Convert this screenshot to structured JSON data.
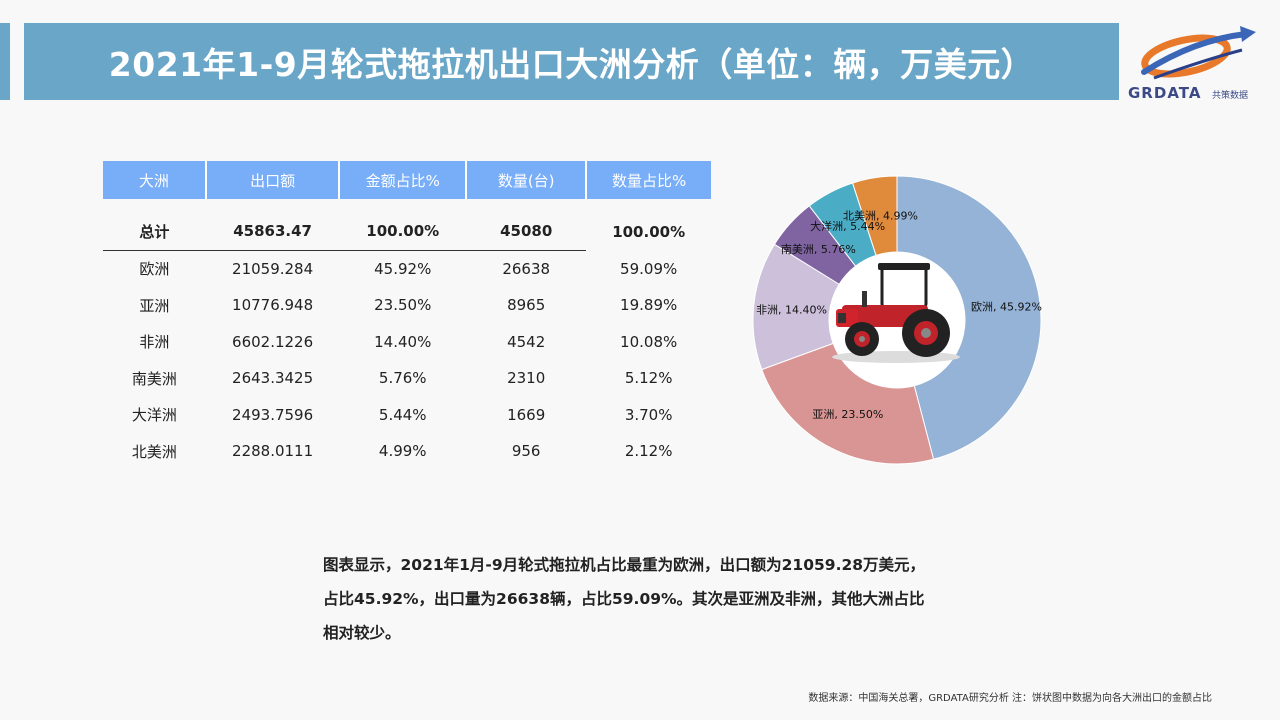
{
  "title": "2021年1-9月轮式拖拉机出口大洲分析（单位：辆，万美元）",
  "logo": {
    "brand": "GRDATA",
    "sub": "共策数据"
  },
  "table": {
    "headers": [
      "大洲",
      "出口额",
      "金额占比%",
      "数量(台)",
      "数量占比%"
    ],
    "total": [
      "总计",
      "45863.47",
      "100.00%",
      "45080",
      "100.00%"
    ],
    "rows": [
      [
        "欧洲",
        "21059.284",
        "45.92%",
        "26638",
        "59.09%"
      ],
      [
        "亚洲",
        "10776.948",
        "23.50%",
        "8965",
        "19.89%"
      ],
      [
        "非洲",
        "6602.1226",
        "14.40%",
        "4542",
        "10.08%"
      ],
      [
        "南美洲",
        "2643.3425",
        "5.76%",
        "2310",
        "5.12%"
      ],
      [
        "大洋洲",
        "2493.7596",
        "5.44%",
        "1669",
        "3.70%"
      ],
      [
        "北美洲",
        "2288.0111",
        "4.99%",
        "956",
        "2.12%"
      ]
    ]
  },
  "chart_data": {
    "type": "pie",
    "title": "",
    "categories": [
      "欧洲",
      "亚洲",
      "非洲",
      "南美洲",
      "大洋洲",
      "北美洲"
    ],
    "values": [
      45.92,
      23.5,
      14.4,
      5.76,
      5.44,
      4.99
    ],
    "labels": [
      "欧洲, 45.92%",
      "亚洲, 23.50%",
      "非洲, 14.40%",
      "南美洲, 5.76%",
      "大洋洲, 5.44%",
      "北美洲, 4.99%"
    ],
    "colors": [
      "#95b3d7",
      "#d99594",
      "#ccc0da",
      "#7f64a1",
      "#4bacc6",
      "#e08a3c"
    ],
    "center_image": "tractor"
  },
  "summary_lines": [
    "图表显示，2021年1月-9月轮式拖拉机占比最重为欧洲，出口额为21059.28万美元，",
    "占比45.92%，出口量为26638辆，占比59.09%。其次是亚洲及非洲，其他大洲占比",
    "相对较少。"
  ],
  "source": "数据来源：中国海关总署，GRDATA研究分析  注：饼状图中数据为向各大洲出口的金额占比"
}
